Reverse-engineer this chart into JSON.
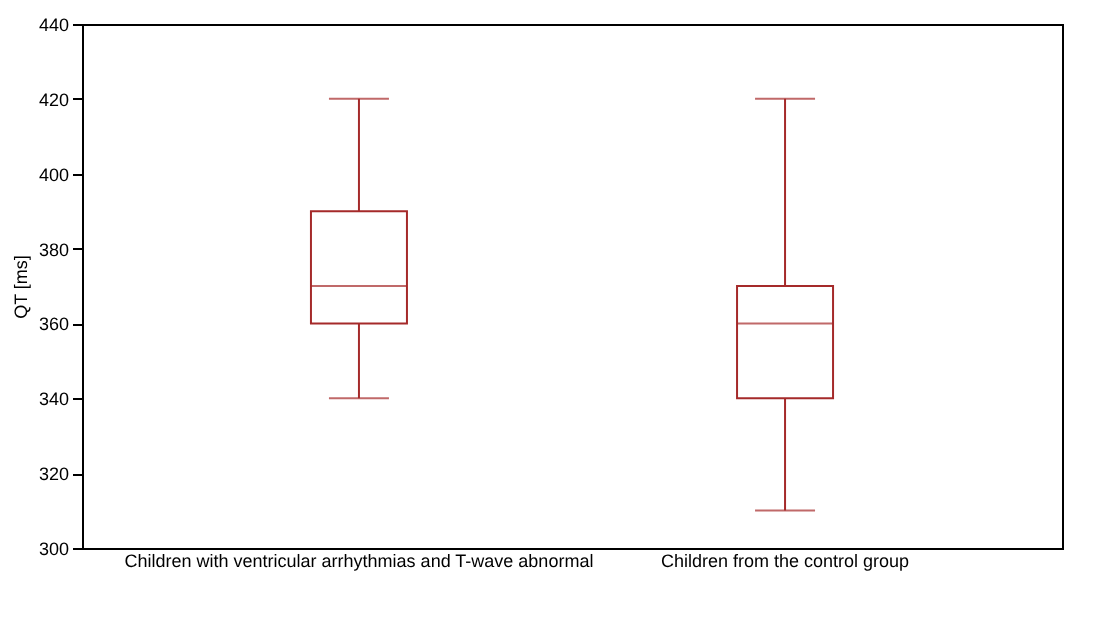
{
  "chart_data": {
    "type": "box",
    "ylabel": "QT [ms]",
    "categories": [
      "Children with ventricular arrhythmias and T-wave abnormal",
      "Children from the control group"
    ],
    "series": [
      {
        "color": "#a52a2a",
        "boxes": [
          {
            "low": 340,
            "q1": 360,
            "median": 370,
            "q3": 390,
            "high": 420
          },
          {
            "low": 310,
            "q1": 340,
            "median": 360,
            "q3": 370,
            "high": 420
          }
        ]
      }
    ],
    "ylim": [
      300,
      440
    ],
    "yticks": [
      300,
      320,
      340,
      360,
      380,
      400,
      420,
      440
    ],
    "grid": false
  }
}
